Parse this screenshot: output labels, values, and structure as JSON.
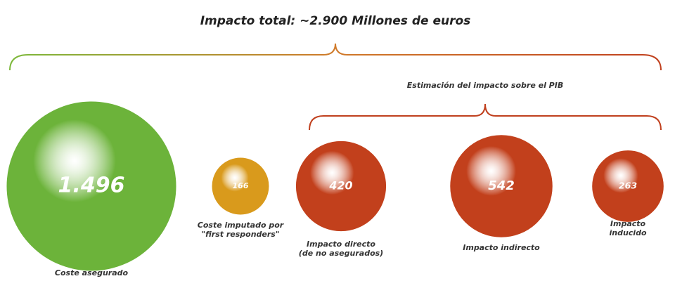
{
  "chart_data": {
    "type": "bubble",
    "title": "Impacto total: ~2.900 Millones de euros",
    "annotation": "Estimación del impacto sobre el PIB",
    "categories": [
      "Coste asegurado",
      "Coste imputado por\n\"first responders\"",
      "Impacto directo\n(de no asegurados)",
      "Impacto indirecto",
      "Impacto inducido"
    ],
    "values": [
      1496,
      166,
      420,
      542,
      263
    ],
    "value_labels": [
      "1.496",
      "166",
      "420",
      "542",
      "263"
    ],
    "colors": [
      "#6cb33a",
      "#d99a1c",
      "#c2401c",
      "#c2401c",
      "#c2401c"
    ]
  }
}
